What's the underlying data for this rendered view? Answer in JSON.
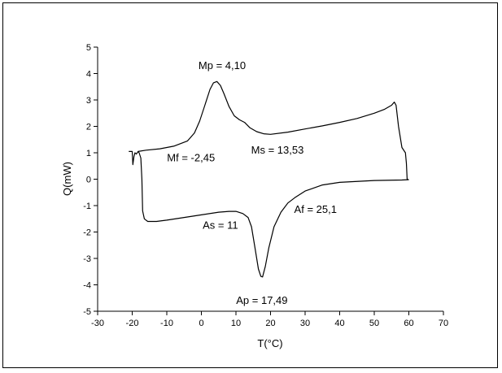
{
  "chart_data": {
    "type": "line",
    "xlabel": "T(°C)",
    "ylabel": "Q(mW)",
    "xlim": [
      -30,
      70
    ],
    "ylim": [
      -5,
      5
    ],
    "x_ticks": [
      -30,
      -20,
      -10,
      0,
      10,
      20,
      30,
      40,
      50,
      60,
      70
    ],
    "y_ticks": [
      -5,
      -4,
      -3,
      -2,
      -1,
      0,
      1,
      2,
      3,
      4,
      5
    ],
    "grid": false,
    "series": [
      {
        "color": "#000000",
        "points": [
          [
            -21,
            1.05
          ],
          [
            -20.5,
            1.05
          ],
          [
            -20,
            1.05
          ],
          [
            -19.8,
            0.55
          ],
          [
            -19.5,
            0.85
          ],
          [
            -19.2,
            1.0
          ],
          [
            -18.8,
            0.95
          ],
          [
            -18.3,
            1.05
          ],
          [
            -16,
            1.1
          ],
          [
            -12,
            1.15
          ],
          [
            -8,
            1.25
          ],
          [
            -4,
            1.45
          ],
          [
            -2,
            1.75
          ],
          [
            -0.5,
            2.2
          ],
          [
            1,
            2.8
          ],
          [
            2.5,
            3.4
          ],
          [
            3.5,
            3.65
          ],
          [
            4.5,
            3.7
          ],
          [
            5.5,
            3.55
          ],
          [
            6.5,
            3.25
          ],
          [
            8,
            2.75
          ],
          [
            9.5,
            2.4
          ],
          [
            11,
            2.25
          ],
          [
            12.5,
            2.15
          ],
          [
            14,
            1.95
          ],
          [
            16,
            1.8
          ],
          [
            18,
            1.72
          ],
          [
            20,
            1.7
          ],
          [
            25,
            1.78
          ],
          [
            30,
            1.9
          ],
          [
            35,
            2.02
          ],
          [
            40,
            2.15
          ],
          [
            45,
            2.3
          ],
          [
            50,
            2.5
          ],
          [
            53,
            2.65
          ],
          [
            55,
            2.8
          ],
          [
            55.8,
            2.92
          ],
          [
            56.3,
            2.8
          ],
          [
            57,
            2.0
          ],
          [
            58,
            1.2
          ],
          [
            59,
            1.0
          ],
          [
            59.3,
            0.6
          ],
          [
            59.5,
            0.0
          ],
          [
            59.9,
            -0.02
          ],
          [
            58,
            -0.03
          ],
          [
            50,
            -0.05
          ],
          [
            40,
            -0.12
          ],
          [
            35,
            -0.22
          ],
          [
            30,
            -0.45
          ],
          [
            27,
            -0.7
          ],
          [
            25,
            -0.9
          ],
          [
            23,
            -1.25
          ],
          [
            21,
            -1.8
          ],
          [
            19.5,
            -2.6
          ],
          [
            18.5,
            -3.3
          ],
          [
            17.7,
            -3.7
          ],
          [
            17.2,
            -3.68
          ],
          [
            16.5,
            -3.4
          ],
          [
            15.5,
            -2.6
          ],
          [
            14.5,
            -1.8
          ],
          [
            13.5,
            -1.45
          ],
          [
            12,
            -1.3
          ],
          [
            10,
            -1.22
          ],
          [
            8,
            -1.22
          ],
          [
            5,
            -1.25
          ],
          [
            0,
            -1.35
          ],
          [
            -5,
            -1.45
          ],
          [
            -10,
            -1.55
          ],
          [
            -13,
            -1.6
          ],
          [
            -15.5,
            -1.6
          ],
          [
            -16.5,
            -1.5
          ],
          [
            -17,
            -1.2
          ],
          [
            -17.2,
            0.0
          ],
          [
            -17.5,
            0.8
          ],
          [
            -18,
            1.0
          ],
          [
            -18.3,
            1.05
          ]
        ]
      }
    ],
    "annotations": [
      {
        "text": "Mp = 4,10",
        "x": 6,
        "y": 4.3
      },
      {
        "text": "Ms = 13,53",
        "x": 22,
        "y": 1.1
      },
      {
        "text": "Mf = -2,45",
        "x": -3,
        "y": 0.8
      },
      {
        "text": "As = 11",
        "x": 5.5,
        "y": -1.75
      },
      {
        "text": "Af = 25,1",
        "x": 33,
        "y": -1.15
      },
      {
        "text": "Ap = 17,49",
        "x": 17.5,
        "y": -4.6
      }
    ]
  }
}
